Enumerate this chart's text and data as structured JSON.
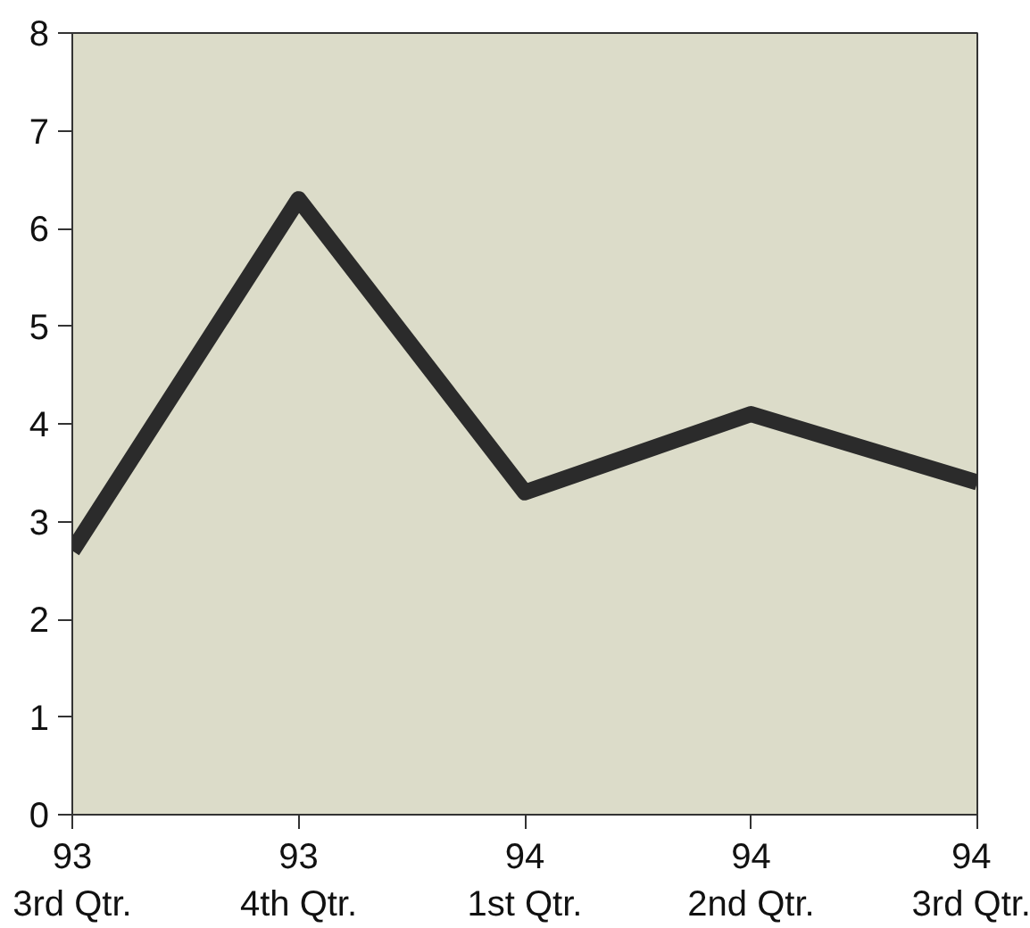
{
  "chart_data": {
    "type": "line",
    "categories": [
      "93\n3rd Qtr.",
      "93\n4th Qtr.",
      "94\n1st Qtr.",
      "94\n2nd Qtr.",
      "94\n3rd Qtr."
    ],
    "series": [
      {
        "color": "#2b2b2b",
        "values": [
          2.7,
          6.3,
          3.3,
          4.1,
          3.4
        ]
      }
    ],
    "ylim": [
      0,
      8
    ],
    "yticks": [
      0,
      1,
      2,
      3,
      4,
      5,
      6,
      7,
      8
    ],
    "grid": false,
    "marker": "none",
    "line_style": "solid"
  }
}
